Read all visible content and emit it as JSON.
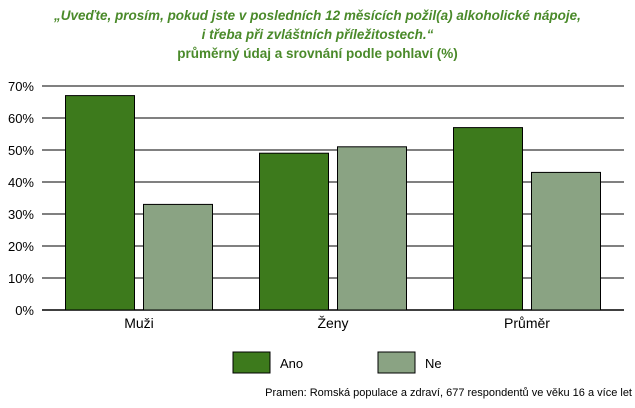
{
  "title": {
    "line1": "„Uveďte, prosím, pokud jste v posledních 12 měsících požil(a) alkoholické nápoje,",
    "line2": "i třeba při zvláštních příležitostech.“",
    "line3": "průměrný údaj a srovnání podle pohlaví (%)"
  },
  "source": "Pramen: Romská populace a zdraví, 677 respondentů ve věku 16 a více let",
  "colors": {
    "ano": "#3d7a1c",
    "ne": "#8aa383",
    "title": "#4a8a2a"
  },
  "chart_data": {
    "type": "bar",
    "categories": [
      "Muži",
      "Ženy",
      "Průměr"
    ],
    "series": [
      {
        "name": "Ano",
        "values": [
          67,
          49,
          57
        ]
      },
      {
        "name": "Ne",
        "values": [
          33,
          51,
          43
        ]
      }
    ],
    "ylim": [
      0,
      70
    ],
    "yticks": [
      0,
      10,
      20,
      30,
      40,
      50,
      60,
      70
    ],
    "ytick_labels": [
      "0%",
      "10%",
      "20%",
      "30%",
      "40%",
      "50%",
      "60%",
      "70%"
    ],
    "grid": true,
    "legend": "bottom-center"
  }
}
